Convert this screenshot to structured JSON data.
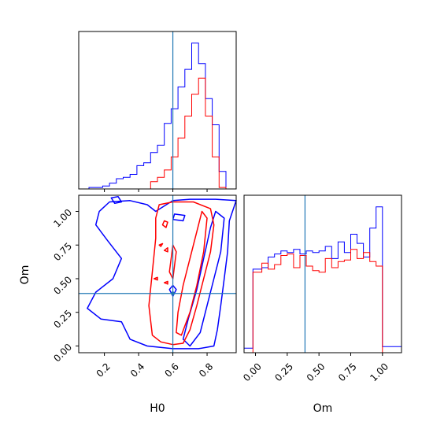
{
  "chart_data": [
    {
      "type": "histogram",
      "panel": "H0 marginal (top-left)",
      "xlim": [
        0.05,
        0.97
      ],
      "truth_x": 0.6,
      "bin_edges": [
        0.11,
        0.15,
        0.19,
        0.23,
        0.27,
        0.31,
        0.35,
        0.39,
        0.43,
        0.47,
        0.51,
        0.55,
        0.59,
        0.63,
        0.67,
        0.71,
        0.75,
        0.79,
        0.83,
        0.87,
        0.91
      ],
      "series": [
        {
          "color": "#0000ff",
          "counts": [
            1,
            1,
            2,
            4,
            7,
            8,
            10,
            16,
            18,
            25,
            30,
            45,
            55,
            70,
            82,
            100,
            86,
            62,
            44,
            12
          ]
        },
        {
          "color": "#ff0000",
          "counts": [
            0,
            0,
            0,
            0,
            0,
            0,
            0,
            0,
            0,
            5,
            8,
            13,
            22,
            35,
            50,
            65,
            76,
            50,
            22,
            1
          ]
        }
      ]
    },
    {
      "type": "contour",
      "panel": "H0 vs Om 2D (bottom-left)",
      "xlabel": "H0",
      "ylabel": "Om",
      "xlim": [
        0.05,
        0.97
      ],
      "ylim": [
        -0.05,
        1.12
      ],
      "truth": {
        "x": 0.6,
        "y": 0.39
      },
      "xticks": [
        {
          "v": 0.2,
          "label": "0.2"
        },
        {
          "v": 0.4,
          "label": "0.4"
        },
        {
          "v": 0.6,
          "label": "0.6"
        },
        {
          "v": 0.8,
          "label": "0.8"
        }
      ],
      "yticks": [
        {
          "v": 0.0,
          "label": "0.00"
        },
        {
          "v": 0.25,
          "label": "0.25"
        },
        {
          "v": 0.5,
          "label": "0.50"
        },
        {
          "v": 0.75,
          "label": "0.75"
        },
        {
          "v": 1.0,
          "label": "1.00"
        }
      ],
      "contours": [
        {
          "color": "#0000ff",
          "level": "outer",
          "points": [
            [
              0.23,
              1.07
            ],
            [
              0.35,
              1.08
            ],
            [
              0.45,
              1.05
            ],
            [
              0.5,
              1.0
            ],
            [
              0.6,
              1.08
            ],
            [
              0.7,
              1.09
            ],
            [
              0.85,
              1.09
            ],
            [
              0.97,
              1.08
            ],
            [
              0.93,
              0.93
            ],
            [
              0.92,
              0.7
            ],
            [
              0.9,
              0.5
            ],
            [
              0.88,
              0.3
            ],
            [
              0.86,
              0.12
            ],
            [
              0.84,
              0.0
            ],
            [
              0.75,
              -0.02
            ],
            [
              0.6,
              -0.02
            ],
            [
              0.45,
              0.0
            ],
            [
              0.35,
              0.05
            ],
            [
              0.3,
              0.18
            ],
            [
              0.18,
              0.2
            ],
            [
              0.1,
              0.28
            ],
            [
              0.15,
              0.4
            ],
            [
              0.25,
              0.5
            ],
            [
              0.3,
              0.65
            ],
            [
              0.22,
              0.78
            ],
            [
              0.15,
              0.9
            ],
            [
              0.17,
              1.0
            ],
            [
              0.23,
              1.07
            ]
          ]
        },
        {
          "color": "#0000ff",
          "level": "inner",
          "points": [
            [
              0.7,
              0.0
            ],
            [
              0.76,
              0.1
            ],
            [
              0.8,
              0.3
            ],
            [
              0.84,
              0.5
            ],
            [
              0.88,
              0.7
            ],
            [
              0.9,
              0.95
            ],
            [
              0.85,
              1.0
            ],
            [
              0.82,
              0.88
            ],
            [
              0.78,
              0.65
            ],
            [
              0.74,
              0.42
            ],
            [
              0.69,
              0.2
            ],
            [
              0.66,
              0.05
            ],
            [
              0.7,
              0.0
            ]
          ]
        },
        {
          "color": "#0000ff",
          "level": "small",
          "points": [
            [
              0.58,
              0.42
            ],
            [
              0.6,
              0.37
            ],
            [
              0.62,
              0.42
            ],
            [
              0.6,
              0.45
            ],
            [
              0.58,
              0.42
            ]
          ]
        },
        {
          "color": "#0000ff",
          "level": "small",
          "points": [
            [
              0.24,
              1.1
            ],
            [
              0.28,
              1.11
            ],
            [
              0.3,
              1.07
            ],
            [
              0.26,
              1.06
            ],
            [
              0.24,
              1.1
            ]
          ]
        },
        {
          "color": "#0000ff",
          "level": "small",
          "points": [
            [
              0.6,
              0.94
            ],
            [
              0.66,
              0.93
            ],
            [
              0.67,
              0.97
            ],
            [
              0.61,
              0.98
            ],
            [
              0.6,
              0.94
            ]
          ]
        },
        {
          "color": "#ff0000",
          "level": "outer",
          "points": [
            [
              0.52,
              1.05
            ],
            [
              0.6,
              1.07
            ],
            [
              0.72,
              1.07
            ],
            [
              0.82,
              1.02
            ],
            [
              0.84,
              0.9
            ],
            [
              0.82,
              0.7
            ],
            [
              0.78,
              0.5
            ],
            [
              0.74,
              0.3
            ],
            [
              0.7,
              0.12
            ],
            [
              0.66,
              0.02
            ],
            [
              0.6,
              0.01
            ],
            [
              0.53,
              0.03
            ],
            [
              0.48,
              0.08
            ],
            [
              0.46,
              0.3
            ],
            [
              0.48,
              0.55
            ],
            [
              0.5,
              0.8
            ],
            [
              0.5,
              0.95
            ],
            [
              0.52,
              1.05
            ]
          ]
        },
        {
          "color": "#ff0000",
          "level": "inner",
          "points": [
            [
              0.65,
              0.08
            ],
            [
              0.7,
              0.25
            ],
            [
              0.74,
              0.45
            ],
            [
              0.78,
              0.7
            ],
            [
              0.8,
              0.95
            ],
            [
              0.77,
              1.0
            ],
            [
              0.74,
              0.85
            ],
            [
              0.7,
              0.65
            ],
            [
              0.66,
              0.45
            ],
            [
              0.63,
              0.25
            ],
            [
              0.62,
              0.1
            ],
            [
              0.65,
              0.08
            ]
          ]
        },
        {
          "color": "#ff0000",
          "level": "inner",
          "points": [
            [
              0.58,
              0.55
            ],
            [
              0.6,
              0.5
            ],
            [
              0.62,
              0.7
            ],
            [
              0.6,
              0.75
            ],
            [
              0.58,
              0.55
            ]
          ]
        },
        {
          "color": "#ff0000",
          "level": "small",
          "points": [
            [
              0.54,
              0.9
            ],
            [
              0.56,
              0.88
            ],
            [
              0.57,
              0.92
            ],
            [
              0.55,
              0.93
            ],
            [
              0.54,
              0.9
            ]
          ]
        },
        {
          "color": "#ff0000",
          "level": "small",
          "points": [
            [
              0.49,
              0.5
            ],
            [
              0.51,
              0.49
            ],
            [
              0.51,
              0.51
            ],
            [
              0.49,
              0.5
            ]
          ]
        },
        {
          "color": "#ff0000",
          "level": "small",
          "points": [
            [
              0.55,
              0.71
            ],
            [
              0.57,
              0.7
            ],
            [
              0.57,
              0.73
            ],
            [
              0.55,
              0.71
            ]
          ]
        },
        {
          "color": "#ff0000",
          "level": "small",
          "points": [
            [
              0.52,
              0.75
            ],
            [
              0.53,
              0.74
            ],
            [
              0.54,
              0.76
            ],
            [
              0.52,
              0.75
            ]
          ]
        },
        {
          "color": "#ff0000",
          "level": "small",
          "points": [
            [
              0.55,
              0.47
            ],
            [
              0.57,
              0.46
            ],
            [
              0.57,
              0.48
            ],
            [
              0.55,
              0.47
            ]
          ]
        }
      ]
    },
    {
      "type": "histogram",
      "panel": "Om marginal (bottom-right)",
      "xlabel": "Om",
      "xlim": [
        -0.09,
        1.15
      ],
      "truth_x": 0.39,
      "xticks": [
        {
          "v": 0.0,
          "label": "0.00"
        },
        {
          "v": 0.25,
          "label": "0.25"
        },
        {
          "v": 0.5,
          "label": "0.50"
        },
        {
          "v": 0.75,
          "label": "0.75"
        },
        {
          "v": 1.0,
          "label": "1.00"
        }
      ],
      "bin_edges": [
        -0.09,
        -0.02,
        0.05,
        0.1,
        0.15,
        0.2,
        0.25,
        0.3,
        0.35,
        0.4,
        0.45,
        0.5,
        0.55,
        0.6,
        0.65,
        0.7,
        0.75,
        0.8,
        0.85,
        0.9,
        0.95,
        1.0,
        1.15
      ],
      "series": [
        {
          "color": "#0000ff",
          "counts": [
            3,
            55,
            56,
            63,
            65,
            67,
            66,
            68,
            65,
            67,
            66,
            67,
            70,
            62,
            73,
            66,
            78,
            72,
            63,
            82,
            96,
            4
          ]
        },
        {
          "color": "#ff0000",
          "counts": [
            0,
            53,
            59,
            55,
            58,
            64,
            65,
            56,
            64,
            57,
            54,
            53,
            62,
            56,
            60,
            61,
            68,
            62,
            66,
            60,
            57,
            0
          ]
        }
      ]
    }
  ],
  "panels": {
    "h0_hist": {
      "xlabel": ""
    },
    "scatter": {
      "xlabel": "H0",
      "ylabel": "Om"
    },
    "om_hist": {
      "xlabel": "Om"
    }
  }
}
